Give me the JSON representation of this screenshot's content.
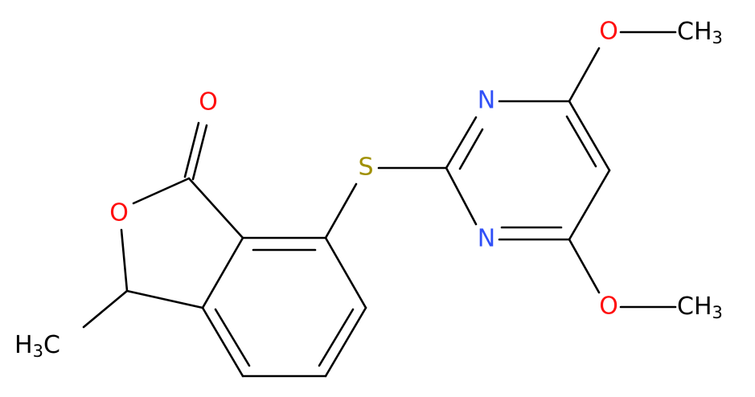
{
  "atoms": [
    {
      "label": "O"
    },
    {
      "label": "O"
    },
    {
      "label": "H",
      "sub": "3",
      "tail": "C"
    },
    {
      "label": "S"
    },
    {
      "label": "N"
    },
    {
      "label": "N"
    },
    {
      "label": "O"
    },
    {
      "label": "CH",
      "sub": "3"
    },
    {
      "label": "O"
    },
    {
      "label": "CH",
      "sub": "3"
    }
  ]
}
